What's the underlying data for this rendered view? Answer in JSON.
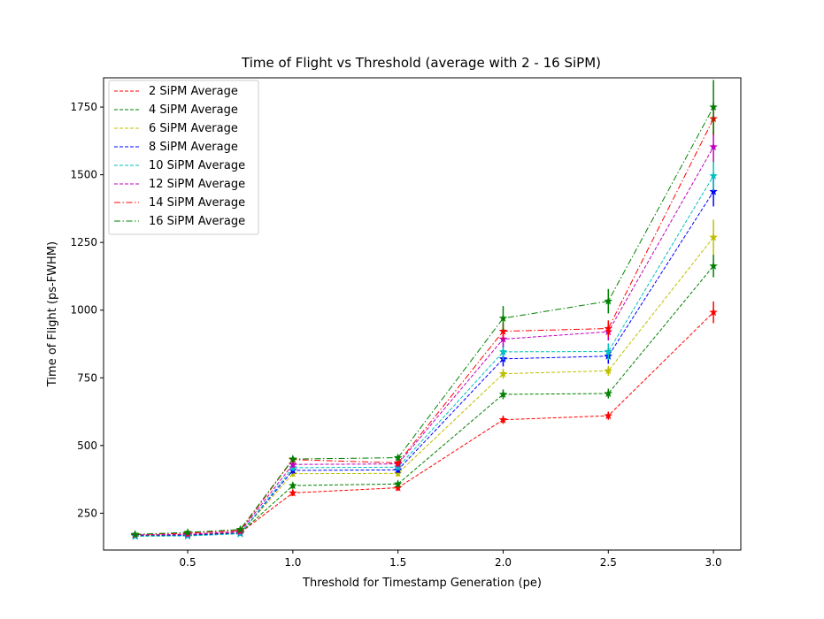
{
  "chart_data": {
    "type": "line",
    "title": "Time of Flight vs Threshold (average with 2 - 16 SiPM)",
    "xlabel": "Threshold for Timestamp Generation (pe)",
    "ylabel": "Time of Flight (ps-FWHM)",
    "x": [
      0.25,
      0.5,
      0.75,
      1.0,
      1.5,
      2.0,
      2.5,
      3.0
    ],
    "xlim": [
      0.1,
      3.13
    ],
    "ylim": [
      114,
      1858
    ],
    "xticks": [
      0.5,
      1.0,
      1.5,
      2.0,
      2.5,
      3.0
    ],
    "xtick_labels": [
      "0.5",
      "1.0",
      "1.5",
      "2.0",
      "2.5",
      "3.0"
    ],
    "yticks": [
      250,
      500,
      750,
      1000,
      1250,
      1500,
      1750
    ],
    "ytick_labels": [
      "250",
      "500",
      "750",
      "1000",
      "1250",
      "1500",
      "1750"
    ],
    "grid": false,
    "legend_position": "top-left",
    "series": [
      {
        "name": "2 SiPM Average",
        "color": "#ff0000",
        "dash": "dashed",
        "values": [
          168,
          170,
          178,
          325,
          344,
          595,
          610,
          992
        ],
        "errors": [
          6,
          6,
          8,
          12,
          12,
          15,
          15,
          40
        ]
      },
      {
        "name": "4 SiPM Average",
        "color": "#008000",
        "dash": "dashed",
        "values": [
          167,
          169,
          177,
          352,
          358,
          689,
          692,
          1163
        ],
        "errors": [
          6,
          6,
          8,
          12,
          12,
          18,
          18,
          42
        ]
      },
      {
        "name": "6 SiPM Average",
        "color": "#bfbf00",
        "dash": "dashed",
        "values": [
          165,
          167,
          175,
          396,
          397,
          765,
          776,
          1269
        ],
        "errors": [
          6,
          6,
          8,
          12,
          12,
          18,
          18,
          65
        ]
      },
      {
        "name": "8 SiPM Average",
        "color": "#0000ff",
        "dash": "dashed",
        "values": [
          166,
          168,
          176,
          408,
          410,
          820,
          830,
          1438
        ],
        "errors": [
          6,
          6,
          8,
          12,
          12,
          28,
          28,
          55
        ]
      },
      {
        "name": "10 SiPM Average",
        "color": "#00bfbf",
        "dash": "dashed",
        "values": [
          165,
          166,
          174,
          418,
          420,
          846,
          847,
          1496
        ],
        "errors": [
          6,
          6,
          8,
          12,
          12,
          30,
          30,
          55
        ]
      },
      {
        "name": "12 SiPM Average",
        "color": "#bf00bf",
        "dash": "dashed",
        "values": [
          170,
          172,
          182,
          430,
          432,
          893,
          920,
          1603
        ],
        "errors": [
          6,
          6,
          8,
          12,
          12,
          30,
          32,
          55
        ]
      },
      {
        "name": "14 SiPM Average",
        "color": "#ff0000",
        "dash": "dashdot",
        "values": [
          171,
          176,
          186,
          448,
          436,
          922,
          932,
          1707
        ],
        "errors": [
          6,
          6,
          8,
          12,
          12,
          30,
          30,
          60
        ]
      },
      {
        "name": "16 SiPM Average",
        "color": "#008000",
        "dash": "dashdot",
        "values": [
          172,
          179,
          190,
          450,
          455,
          970,
          1033,
          1750
        ],
        "errors": [
          6,
          6,
          8,
          12,
          12,
          45,
          45,
          100
        ]
      }
    ]
  }
}
